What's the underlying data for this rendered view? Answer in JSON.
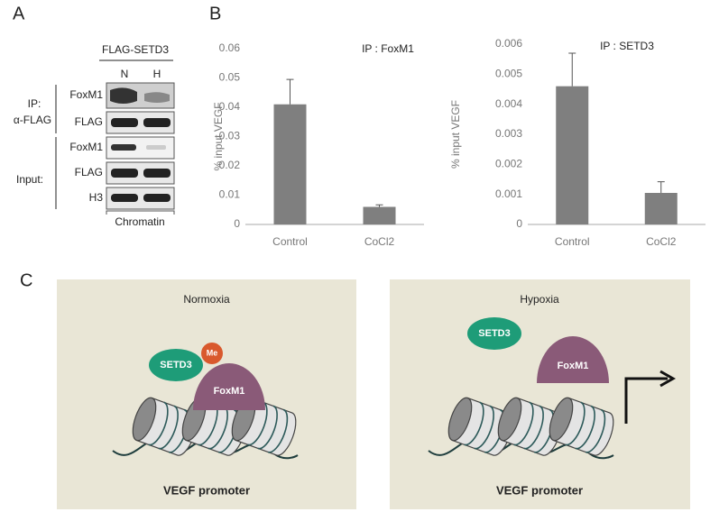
{
  "panel_labels": [
    "A",
    "B",
    "C"
  ],
  "blot": {
    "header": "FLAG-SETD3",
    "lanes": [
      "N",
      "H"
    ],
    "groups": [
      "IP:",
      "α-FLAG",
      "Input:"
    ],
    "rows": [
      "FoxM1",
      "FLAG",
      "FoxM1",
      "FLAG",
      "H3"
    ],
    "footer": "Chromatin"
  },
  "chart_data": [
    {
      "type": "bar",
      "title": "IP : FoxM1",
      "y_label": "% input VEGF",
      "categories": [
        "Control",
        "CoCl2"
      ],
      "values": [
        0.041,
        0.006
      ],
      "errors": [
        0.0085,
        0.0007
      ],
      "color": "#7f7f7f",
      "ylim": [
        0,
        0.06
      ],
      "yticks": [
        0,
        0.01,
        0.02,
        0.03,
        0.04,
        0.05,
        0.06
      ],
      "grid": false
    },
    {
      "type": "bar",
      "title": "IP : SETD3",
      "y_label": "% input VEGF",
      "categories": [
        "Control",
        "CoCl2"
      ],
      "values": [
        0.0046,
        0.00105
      ],
      "errors": [
        0.0011,
        0.00037
      ],
      "color": "#7f7f7f",
      "ylim": [
        0,
        0.006
      ],
      "yticks": [
        0,
        0.001,
        0.002,
        0.003,
        0.004,
        0.005,
        0.006
      ],
      "grid": false
    }
  ],
  "diagram": {
    "panels": [
      {
        "title": "Normoxia",
        "labels": [
          "SETD3",
          "Me",
          "FoxM1"
        ],
        "caption": "VEGF promoter"
      },
      {
        "title": "Hypoxia",
        "labels": [
          "SETD3",
          "FoxM1"
        ],
        "caption": "VEGF promoter"
      }
    ]
  }
}
